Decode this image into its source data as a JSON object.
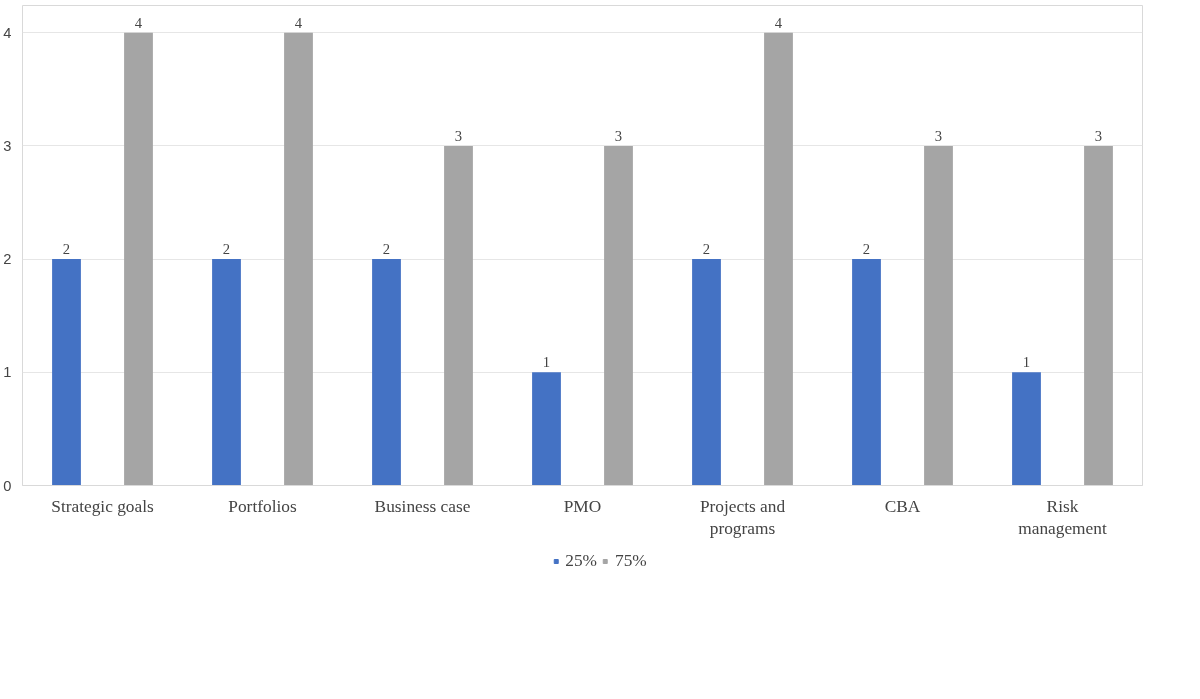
{
  "chart_data": {
    "type": "bar",
    "categories": [
      "Strategic goals",
      "Portfolios",
      "Business case",
      "PMO",
      "Projects and programs",
      "CBA",
      "Risk management"
    ],
    "series": [
      {
        "name": "25%",
        "color": "#4472c4",
        "values": [
          2,
          2,
          2,
          1,
          2,
          2,
          1
        ]
      },
      {
        "name": "75%",
        "color": "#a5a5a5",
        "values": [
          4,
          4,
          3,
          3,
          4,
          3,
          3
        ]
      }
    ],
    "ylim": [
      0,
      4
    ],
    "yticks": [
      0,
      1,
      2,
      3,
      4
    ],
    "grid": "y",
    "legend": "bottom",
    "data_labels": true
  }
}
